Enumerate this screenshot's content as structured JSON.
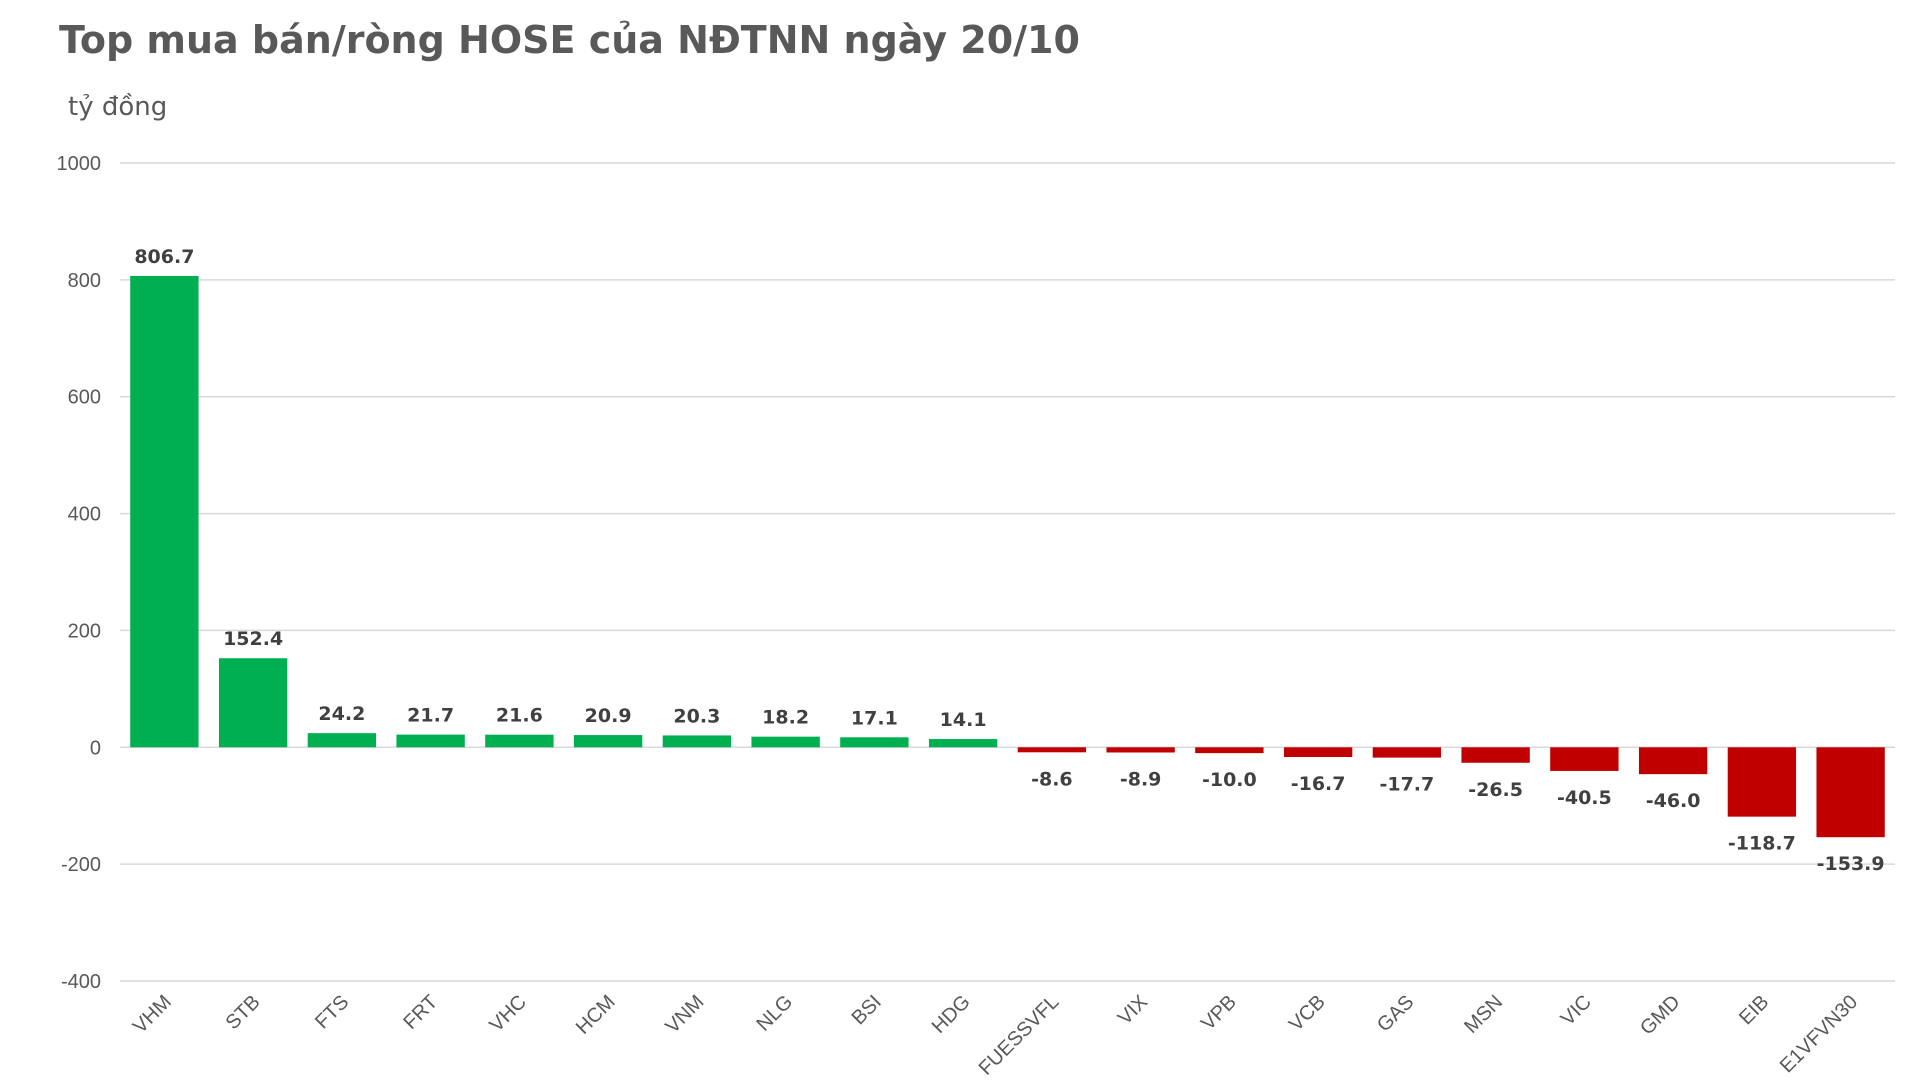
{
  "chart_data": {
    "type": "bar",
    "title": "Top mua bán/ròng HOSE của NĐTNN ngày 20/10",
    "ylabel": "tỷ đồng",
    "xlabel": "",
    "ylim": [
      -400,
      1000
    ],
    "yticks": [
      1000,
      800,
      600,
      400,
      200,
      0,
      -200,
      -400
    ],
    "grid": true,
    "legend": "none",
    "categories": [
      "VHM",
      "STB",
      "FTS",
      "FRT",
      "VHC",
      "HCM",
      "VNM",
      "NLG",
      "BSI",
      "HDG",
      "FUESSVFL",
      "VIX",
      "VPB",
      "VCB",
      "GAS",
      "MSN",
      "VIC",
      "GMD",
      "EIB",
      "E1VFVN30"
    ],
    "values": [
      806.7,
      152.4,
      24.2,
      21.7,
      21.6,
      20.9,
      20.3,
      18.2,
      17.1,
      14.1,
      -8.6,
      -8.9,
      -10.0,
      -16.7,
      -17.7,
      -26.5,
      -40.5,
      -46.0,
      -118.7,
      -153.9
    ],
    "data_labels": [
      "806.7",
      "152.4",
      "24.2",
      "21.7",
      "21.6",
      "20.9",
      "20.3",
      "18.2",
      "17.1",
      "14.1",
      "-8.6",
      "-8.9",
      "-10.0",
      "-16.7",
      "-17.7",
      "-26.5",
      "-40.5",
      "-46.0",
      "-118.7",
      "-153.9"
    ],
    "colors": {
      "positive": "#00b050",
      "negative": "#c00000",
      "grid": "#d9d9d9",
      "text": "#595959"
    }
  }
}
